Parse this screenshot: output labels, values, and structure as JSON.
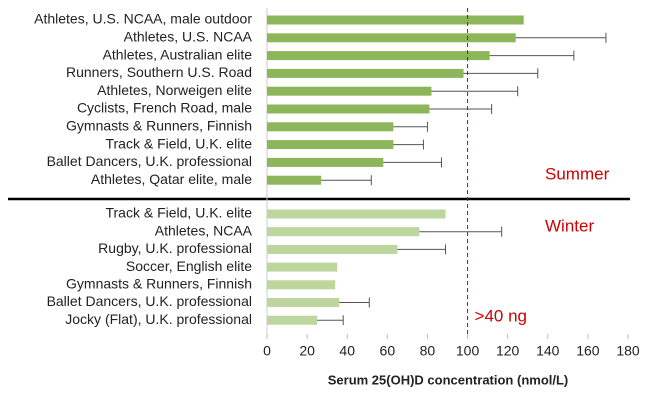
{
  "chart_data": {
    "type": "bar",
    "orientation": "horizontal",
    "x_label": "Serum 25(OH)D concentration (nmol/L)",
    "xlim": [
      0,
      180
    ],
    "xticks": [
      0,
      20,
      40,
      60,
      80,
      100,
      120,
      140,
      160,
      180
    ],
    "groups": [
      {
        "name": "Summer",
        "color": "#8db65a",
        "categories": [
          "Athletes, U.S. NCAA, male outdoor",
          "Athletes, U.S. NCAA",
          "Athletes, Australian elite",
          "Runners, Southern U.S. Road",
          "Athletes, Norweigen elite",
          "Cyclists, French Road, male",
          "Gymnasts & Runners, Finnish",
          "Track & Field, U.K. elite",
          "Ballet Dancers, U.K. professional",
          "Athletes, Qatar elite, male"
        ],
        "values": [
          128,
          124,
          111,
          98,
          82,
          81,
          63,
          63,
          58,
          27
        ],
        "errors": [
          null,
          45,
          42,
          37,
          43,
          31,
          17,
          15,
          29,
          25
        ]
      },
      {
        "name": "Winter",
        "color": "#bcd69d",
        "categories": [
          "Track & Field, U.K. elite",
          "Athletes, NCAA",
          "Rugby, U.K. professional",
          "Soccer, English elite",
          "Gymnasts & Runners, Finnish",
          "Ballet Dancers, U.K. professional",
          "Jocky (Flat), U.K. professional"
        ],
        "values": [
          89,
          76,
          65,
          35,
          34,
          36,
          25
        ],
        "errors": [
          null,
          41,
          24,
          null,
          null,
          15,
          13
        ]
      }
    ],
    "reference_line": {
      "value": 100,
      "label": ">40 ng",
      "color": "#cc0000"
    }
  }
}
